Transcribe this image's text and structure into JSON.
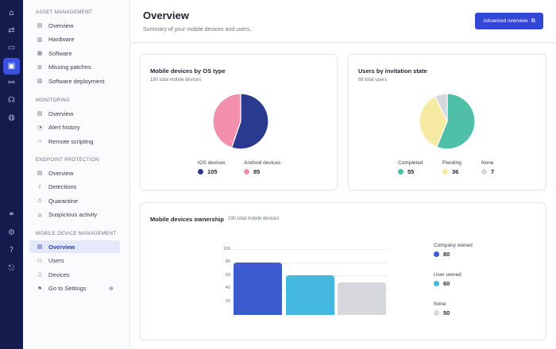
{
  "rail": {
    "icons": [
      {
        "name": "home-icon",
        "glyph": "⌂"
      },
      {
        "name": "swap-icon",
        "glyph": "⇄"
      },
      {
        "name": "chat-icon",
        "glyph": "▭"
      },
      {
        "name": "devices-icon",
        "glyph": "▣"
      },
      {
        "name": "network-icon",
        "glyph": "⚯"
      },
      {
        "name": "security-icon",
        "glyph": "☊"
      },
      {
        "name": "shield-icon",
        "glyph": "◍"
      },
      {
        "name": "link-icon",
        "glyph": "⚭"
      },
      {
        "name": "settings-icon",
        "glyph": "⚙"
      },
      {
        "name": "help-icon",
        "glyph": "?"
      },
      {
        "name": "exit-icon",
        "glyph": "⎋"
      }
    ]
  },
  "sidebar": {
    "sections": [
      {
        "title": "ASSET MANAGEMENT",
        "items": [
          {
            "label": "Overview",
            "icon": "list-icon",
            "glyph": "▤"
          },
          {
            "label": "Hardware",
            "icon": "hardware-icon",
            "glyph": "▥"
          },
          {
            "label": "Software",
            "icon": "software-icon",
            "glyph": "▦"
          },
          {
            "label": "Missing patches",
            "icon": "patch-icon",
            "glyph": "⊞"
          },
          {
            "label": "Software deployment",
            "icon": "deploy-icon",
            "glyph": "▧"
          }
        ]
      },
      {
        "title": "MONITORING",
        "items": [
          {
            "label": "Overview",
            "icon": "list-icon",
            "glyph": "▤"
          },
          {
            "label": "Alert history",
            "icon": "alert-icon",
            "glyph": "◔"
          },
          {
            "label": "Remote scripting",
            "icon": "code-icon",
            "glyph": "‹›"
          }
        ]
      },
      {
        "title": "ENDPOINT PROTECTION",
        "items": [
          {
            "label": "Overview",
            "icon": "list-icon",
            "glyph": "▤"
          },
          {
            "label": "Detections",
            "icon": "detection-icon",
            "glyph": "!"
          },
          {
            "label": "Quarantine",
            "icon": "quarantine-icon",
            "glyph": "⚠"
          },
          {
            "label": "Suspicious activity",
            "icon": "activity-icon",
            "glyph": "⌂"
          }
        ]
      },
      {
        "title": "MOBILE DEVICE MANAGEMENT",
        "items": [
          {
            "label": "Overview",
            "icon": "list-icon",
            "glyph": "▤",
            "active": true
          },
          {
            "label": "Users",
            "icon": "users-icon",
            "glyph": "⚇"
          },
          {
            "label": "Devices",
            "icon": "phone-icon",
            "glyph": "▯"
          },
          {
            "label": "Go to Settings",
            "icon": "settings-link-icon",
            "glyph": "⚑",
            "trail": "⊕"
          }
        ]
      }
    ]
  },
  "header": {
    "title": "Overview",
    "subtitle": "Summary of your mobile devices and users.",
    "button_label": "Advanced overview",
    "button_icon": "external-link-icon"
  },
  "os_card": {
    "title": "Mobile devices by OS type",
    "subtitle": "190 total mobile devices",
    "legend": [
      {
        "label": "iOS devices",
        "value": "105",
        "color": "#2a3a8f"
      },
      {
        "label": "Android devices",
        "value": "85",
        "color": "#f28fab"
      }
    ]
  },
  "invite_card": {
    "title": "Users by invitation state",
    "subtitle": "98 total users",
    "legend": [
      {
        "label": "Completed",
        "value": "55",
        "color": "#4fbfa8"
      },
      {
        "label": "Pending",
        "value": "36",
        "color": "#f7eaa3"
      },
      {
        "label": "None",
        "value": "7",
        "color": "#d6d8de"
      }
    ]
  },
  "ownership_card": {
    "title": "Mobile devices ownership",
    "subtitle": "190 total mobile devices",
    "legend": [
      {
        "label": "Company owned",
        "value": "80",
        "color": "#3b5bcf"
      },
      {
        "label": "User owned",
        "value": "60",
        "color": "#45b8e0"
      },
      {
        "label": "None",
        "value": "50",
        "color": "#d6d8de"
      }
    ]
  },
  "chart_data": [
    {
      "type": "pie",
      "categories": [
        "iOS devices",
        "Android devices"
      ],
      "values": [
        105,
        85
      ],
      "title": "Mobile devices by OS type"
    },
    {
      "type": "pie",
      "categories": [
        "Completed",
        "Pending",
        "None"
      ],
      "values": [
        55,
        36,
        7
      ],
      "title": "Users by invitation state"
    },
    {
      "type": "bar",
      "categories": [
        "Company owned",
        "User owned",
        "None"
      ],
      "values": [
        80,
        60,
        50
      ],
      "title": "Mobile devices ownership",
      "ylim": [
        0,
        100
      ],
      "yticks": [
        20,
        40,
        60,
        80,
        100
      ]
    }
  ]
}
